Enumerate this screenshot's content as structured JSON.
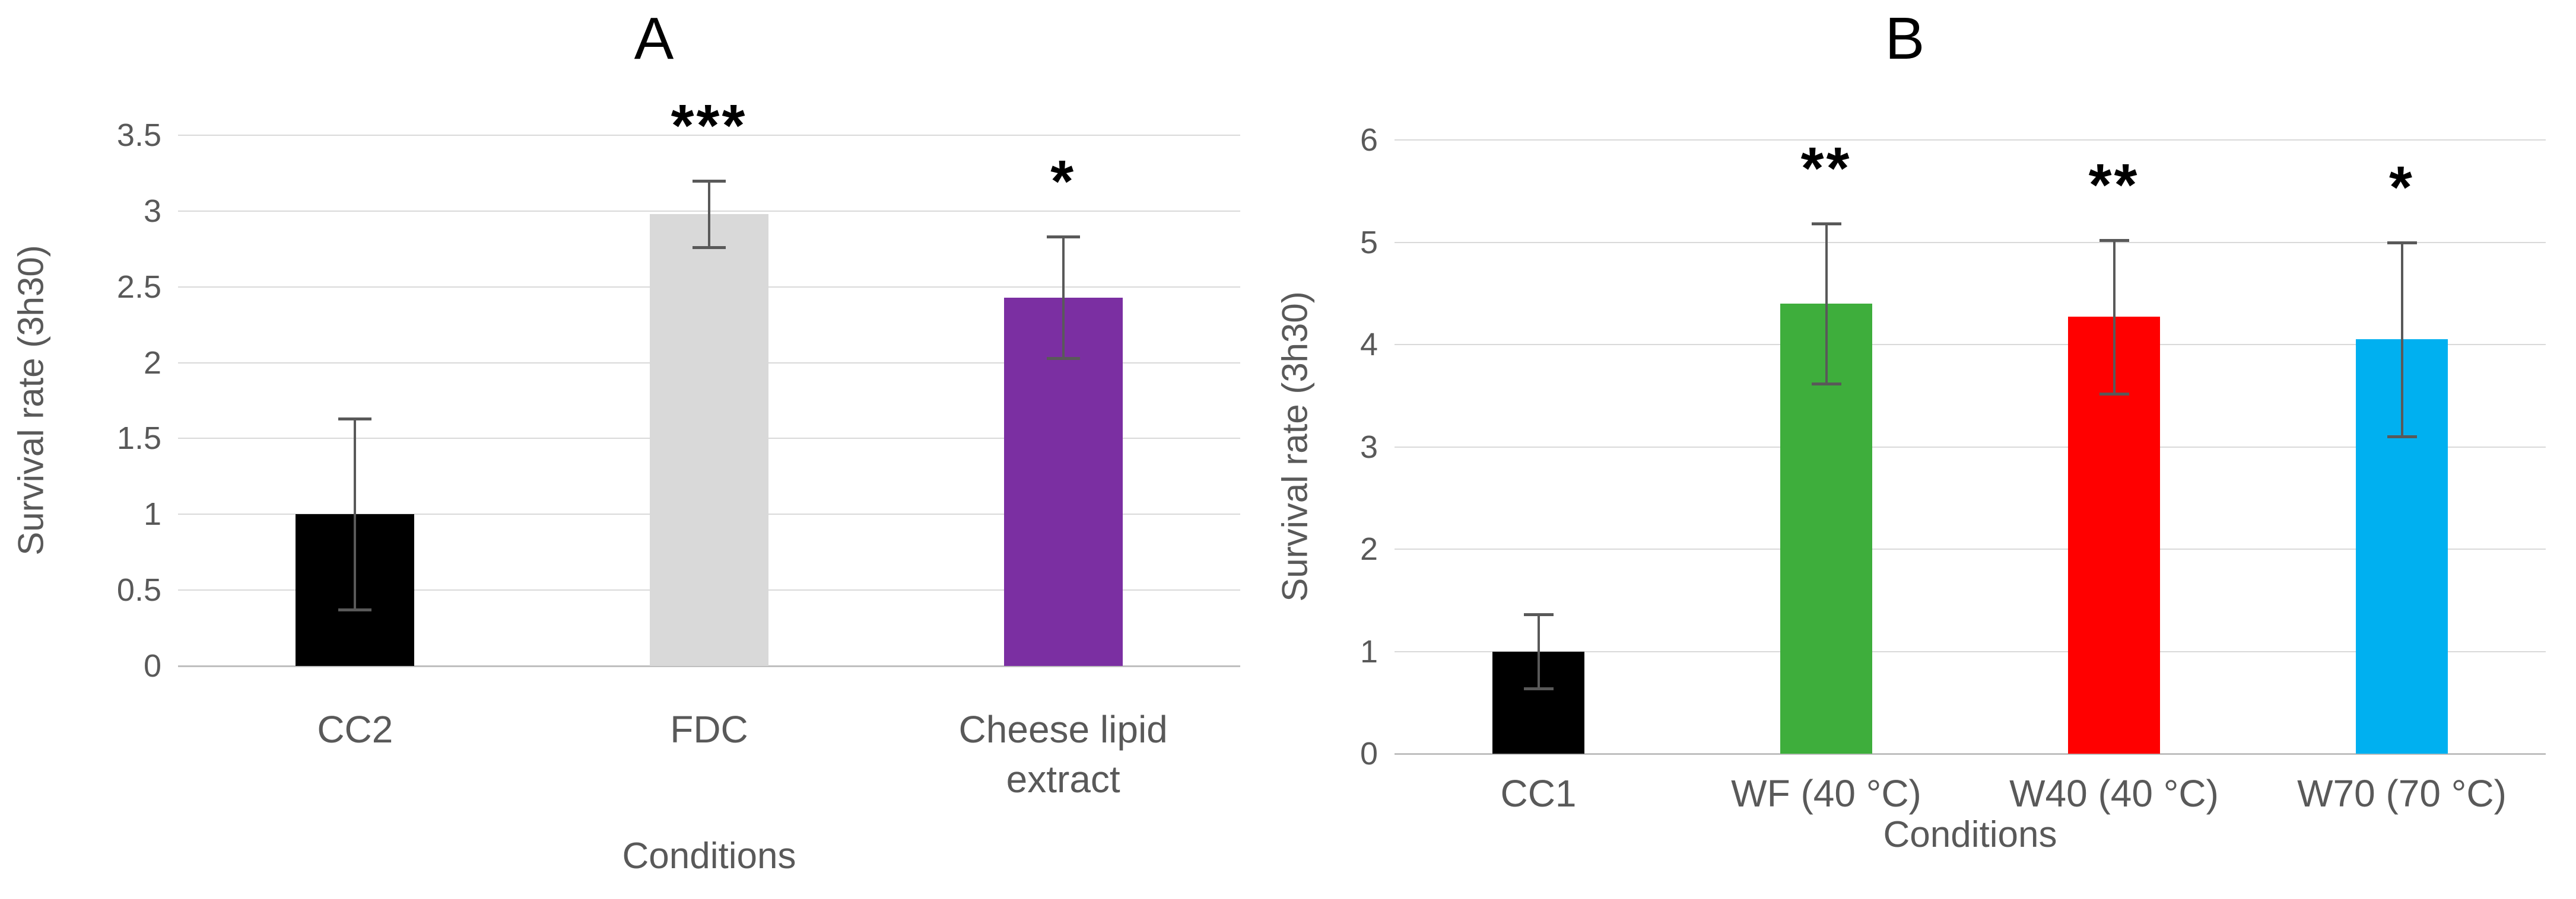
{
  "figure": {
    "background": "#ffffff",
    "axis_text_color": "#595959",
    "title_color": "#000000",
    "gridline_color": "#d9d9d9"
  },
  "chart_data": [
    {
      "type": "bar",
      "panel_label": "A",
      "title": "A",
      "ylabel": "Survival rate (3h30)",
      "xlabel": "Conditions",
      "ylim": [
        0,
        3.5
      ],
      "ytick_step": 0.5,
      "ytick_labels": [
        "3.5",
        "3",
        "2.5",
        "2",
        "1.5",
        "1",
        "0.5",
        "0"
      ],
      "grid": true,
      "legend": false,
      "categories": [
        "CC2",
        "FDC",
        "Cheese lipid extract"
      ],
      "values": [
        1.0,
        2.98,
        2.43
      ],
      "error_bars": [
        0.63,
        0.22,
        0.4
      ],
      "significance": [
        "",
        "***",
        "*"
      ],
      "bar_colors": [
        "#000000",
        "#d9d9d9",
        "#7b2fa2"
      ],
      "error_color": "#595959"
    },
    {
      "type": "bar",
      "panel_label": "B",
      "title": "B",
      "ylabel": "Survival rate (3h30)",
      "xlabel": "Conditions",
      "ylim": [
        0,
        6
      ],
      "ytick_step": 1,
      "ytick_labels": [
        "6",
        "5",
        "4",
        "3",
        "2",
        "1",
        "0"
      ],
      "grid": true,
      "legend": false,
      "categories": [
        "CC1",
        "WF (40 °C)",
        "W40 (40 °C)",
        "W70 (70 °C)"
      ],
      "values": [
        1.0,
        4.4,
        4.27,
        4.05
      ],
      "error_bars": [
        0.36,
        0.78,
        0.75,
        0.95
      ],
      "significance": [
        "",
        "**",
        "**",
        "*"
      ],
      "bar_colors": [
        "#000000",
        "#3eae3c",
        "#ff0000",
        "#00b0f0"
      ],
      "error_color": "#595959"
    }
  ]
}
